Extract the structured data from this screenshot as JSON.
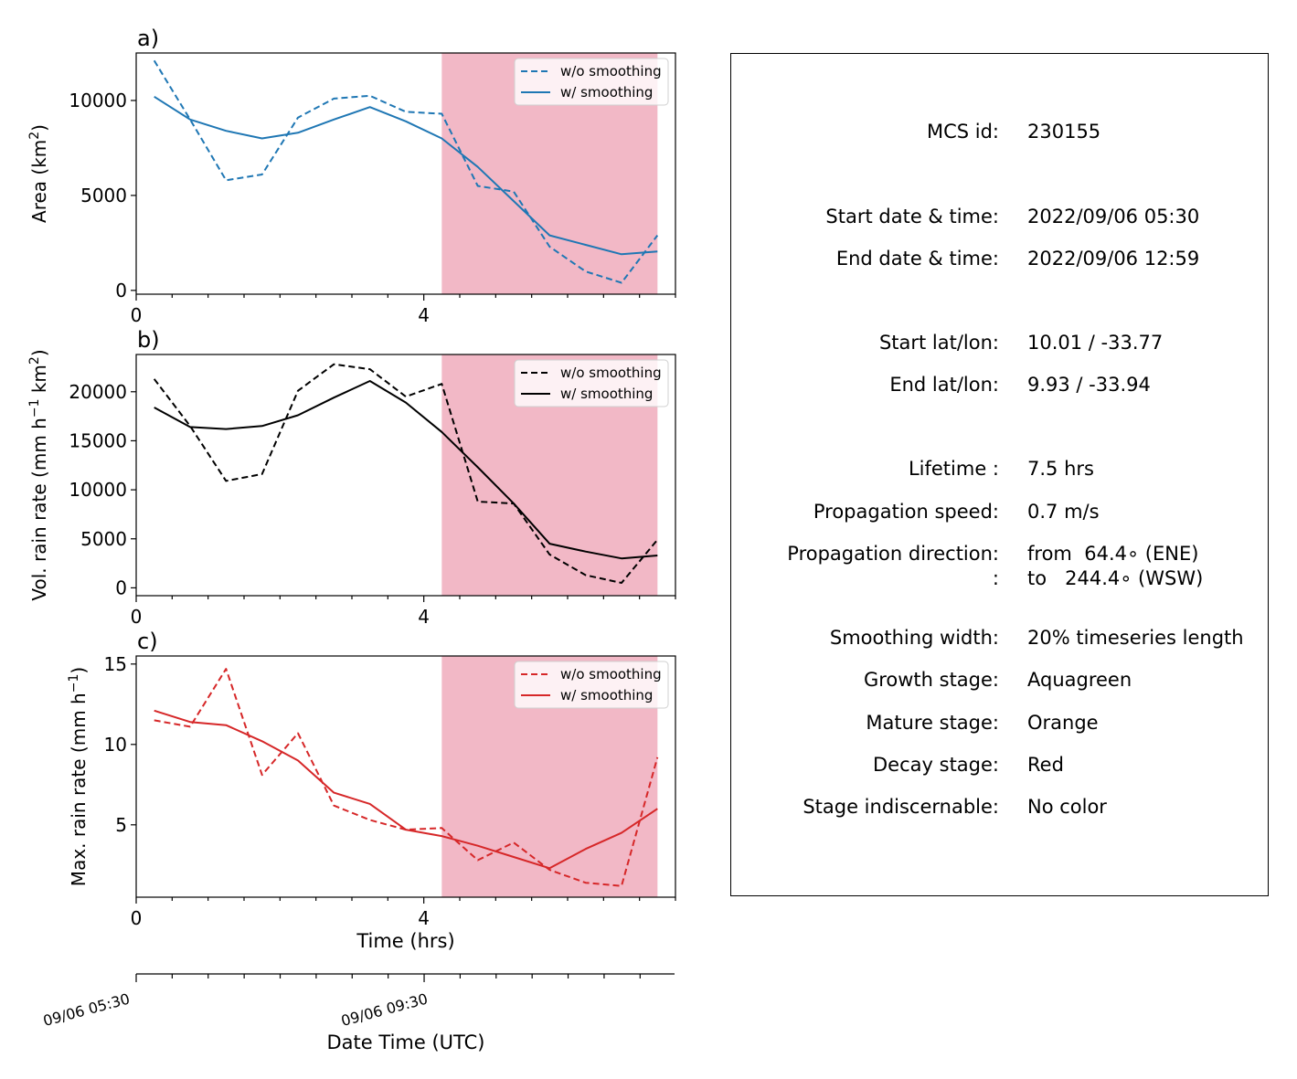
{
  "figure": {
    "shade_color": "#f2b8c6",
    "x_ticks": [
      "0",
      "4"
    ],
    "xlabel": "Time (hrs)",
    "xlim": [
      0,
      7.5
    ],
    "shade_range": [
      4.25,
      7.25
    ]
  },
  "datetime_axis": {
    "label": "Date Time (UTC)",
    "ticks": [
      "09/06 05:30",
      "09/06 09:30"
    ]
  },
  "legend": {
    "dashed": "w/o smoothing",
    "solid": "w/ smoothing"
  },
  "chart_data": [
    {
      "type": "line",
      "panel_label": "a)",
      "ylabel": "Area  (km",
      "ylabel_sup": "2",
      "ylabel_end": ")",
      "ylim": [
        -200,
        12500
      ],
      "yticks": [
        0,
        5000,
        10000
      ],
      "color": "#1f77b4",
      "x": [
        0.25,
        0.75,
        1.25,
        1.75,
        2.25,
        2.75,
        3.25,
        3.75,
        4.25,
        4.75,
        5.25,
        5.75,
        6.25,
        6.75,
        7.25
      ],
      "series": [
        {
          "name": "w/o smoothing",
          "style": "dashed",
          "values": [
            12100,
            9000,
            5800,
            6100,
            9100,
            10100,
            10250,
            9400,
            9300,
            5500,
            5200,
            2300,
            1000,
            400,
            2900
          ]
        },
        {
          "name": "w/ smoothing",
          "style": "solid",
          "values": [
            10200,
            9000,
            8400,
            8000,
            8300,
            9000,
            9650,
            8900,
            8000,
            6500,
            4700,
            2900,
            2400,
            1900,
            2050
          ]
        }
      ]
    },
    {
      "type": "line",
      "panel_label": "b)",
      "ylabel": "Vol. rain rate (mm h",
      "ylabel_sup": "−1",
      "ylabel_mid": " km",
      "ylabel_sup2": "2",
      "ylabel_end": ")",
      "ylim": [
        -800,
        23800
      ],
      "yticks": [
        0,
        5000,
        10000,
        15000,
        20000
      ],
      "color": "#000000",
      "x": [
        0.25,
        0.75,
        1.25,
        1.75,
        2.25,
        2.75,
        3.25,
        3.75,
        4.25,
        4.75,
        5.25,
        5.75,
        6.25,
        6.75,
        7.25
      ],
      "series": [
        {
          "name": "w/o smoothing",
          "style": "dashed",
          "values": [
            21300,
            16500,
            10900,
            11600,
            20100,
            22800,
            22300,
            19500,
            20800,
            8800,
            8600,
            3400,
            1300,
            500,
            4900
          ]
        },
        {
          "name": "w/ smoothing",
          "style": "solid",
          "values": [
            18400,
            16400,
            16200,
            16500,
            17600,
            19400,
            21100,
            18900,
            15900,
            12300,
            8600,
            4500,
            3700,
            3000,
            3300
          ]
        }
      ]
    },
    {
      "type": "line",
      "panel_label": "c)",
      "ylabel": "Max. rain rate  (mm h",
      "ylabel_sup": "−1",
      "ylabel_end": ")",
      "ylim": [
        0.5,
        15.5
      ],
      "yticks": [
        5,
        10,
        15
      ],
      "color": "#d62728",
      "x": [
        0.25,
        0.75,
        1.25,
        1.75,
        2.25,
        2.75,
        3.25,
        3.75,
        4.25,
        4.75,
        5.25,
        5.75,
        6.25,
        6.75,
        7.25
      ],
      "series": [
        {
          "name": "w/o smoothing",
          "style": "dashed",
          "values": [
            11.5,
            11.1,
            14.7,
            8.1,
            10.7,
            6.2,
            5.3,
            4.7,
            4.8,
            2.8,
            3.9,
            2.2,
            1.4,
            1.2,
            9.2
          ]
        },
        {
          "name": "w/ smoothing",
          "style": "solid",
          "values": [
            12.1,
            11.4,
            11.2,
            10.2,
            9.0,
            7.0,
            6.3,
            4.7,
            4.3,
            3.7,
            3.0,
            2.3,
            3.5,
            4.5,
            6.0
          ]
        }
      ]
    }
  ],
  "info": [
    {
      "label": "MCS id:",
      "value": "230155"
    },
    {
      "label": "Start date & time:",
      "value": "2022/09/06 05:30"
    },
    {
      "label": "End date & time:",
      "value": "2022/09/06 12:59"
    },
    {
      "label": "Start lat/lon:",
      "value": "10.01 / -33.77"
    },
    {
      "label": "End lat/lon:",
      "value": "9.93 / -33.94"
    },
    {
      "label": "Lifetime :",
      "value": "7.5 hrs"
    },
    {
      "label": "Propagation speed:",
      "value": "0.7 m/s"
    },
    {
      "label": "Propagation direction:",
      "value": "from  64.4∘ (ENE)"
    },
    {
      "label": ":",
      "value": "to   244.4∘ (WSW)"
    },
    {
      "label": "Smoothing width:",
      "value": "20% timeseries length"
    },
    {
      "label": "Growth stage:",
      "value": "Aquagreen"
    },
    {
      "label": "Mature stage:",
      "value": "Orange"
    },
    {
      "label": "Decay stage:",
      "value": "Red"
    },
    {
      "label": "Stage indiscernable:",
      "value": "No color"
    }
  ]
}
